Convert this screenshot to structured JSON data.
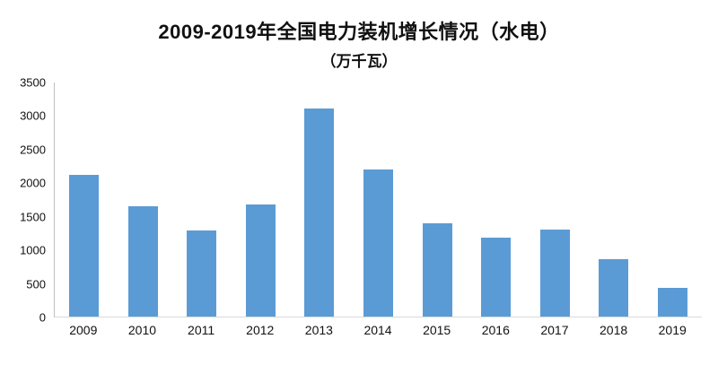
{
  "chart_data": {
    "type": "bar",
    "title": "2009-2019年全国电力装机增长情况（水电）",
    "subtitle": "（万千瓦）",
    "categories": [
      "2009",
      "2010",
      "2011",
      "2012",
      "2013",
      "2014",
      "2015",
      "2016",
      "2017",
      "2018",
      "2019"
    ],
    "values": [
      2110,
      1640,
      1280,
      1670,
      3100,
      2190,
      1390,
      1180,
      1290,
      850,
      430
    ],
    "xlabel": "",
    "ylabel": "",
    "ylim": [
      0,
      3500
    ],
    "ytick_step": 500,
    "grid": false,
    "legend": false,
    "bar_color": "#5B9BD5",
    "text_color": "#111111",
    "axis_line_color": "#bfbfbf"
  }
}
